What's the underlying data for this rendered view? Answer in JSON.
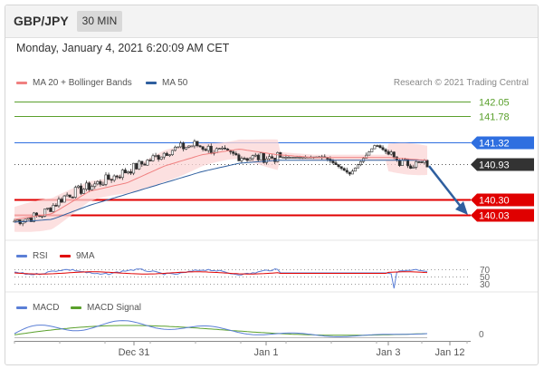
{
  "header": {
    "pair": "GBP/JPY",
    "timeframe": "30 MIN"
  },
  "datetime": "Monday, January 4, 2021 6:20:09 AM CET",
  "legend": {
    "ma20": {
      "label": "MA 20 + Bollinger Bands",
      "color": "#f08080"
    },
    "ma50": {
      "label": "MA 50",
      "color": "#2f5f9f"
    }
  },
  "credit": "Research © 2021 Trading Central",
  "price_levels": [
    {
      "label": "142.05",
      "value": 142.05,
      "color": "#5aa02c",
      "style": "text"
    },
    {
      "label": "141.78",
      "value": 141.78,
      "color": "#5aa02c",
      "style": "text"
    },
    {
      "label": "141.32",
      "value": 141.32,
      "color": "#2f6fe0",
      "style": "badge"
    },
    {
      "label": "140.93",
      "value": 140.93,
      "color": "#333333",
      "style": "badge"
    },
    {
      "label": "140.30",
      "value": 140.3,
      "color": "#e00000",
      "style": "badge"
    },
    {
      "label": "140.03",
      "value": 140.03,
      "color": "#e00000",
      "style": "badge"
    }
  ],
  "rsi": {
    "legend": [
      {
        "label": "RSI",
        "color": "#5b7fd6"
      },
      {
        "label": "9MA",
        "color": "#e00000"
      }
    ],
    "levels": [
      "70",
      "50",
      "30"
    ]
  },
  "macd": {
    "legend": [
      {
        "label": "MACD",
        "color": "#5b7fd6"
      },
      {
        "label": "MACD Signal",
        "color": "#5aa02c"
      }
    ],
    "zero_label": "0"
  },
  "x_axis": {
    "ticks": [
      "Dec 31",
      "Jan 1",
      "Jan 3",
      "Jan 12"
    ]
  },
  "chart_data": {
    "type": "line",
    "title": "GBP/JPY",
    "series": [
      {
        "name": "MA 20 + Bollinger Bands",
        "values": [
          139.95,
          140.05,
          140.45,
          140.6,
          140.9,
          141.1,
          141.2,
          141.1,
          141.05,
          141.05,
          141.05,
          141.0
        ]
      },
      {
        "name": "MA 50",
        "values": [
          139.9,
          139.95,
          140.2,
          140.4,
          140.6,
          140.8,
          140.95,
          141.0,
          141.0,
          141.0,
          141.0,
          141.0
        ]
      }
    ],
    "price_approx": [
      139.92,
      140.02,
      140.38,
      140.55,
      140.74,
      140.95,
      141.18,
      141.28,
      141.14,
      141.05,
      141.05,
      141.05,
      141.06,
      140.75,
      141.28,
      140.95,
      140.93
    ],
    "ylim": [
      139.9,
      142.2
    ],
    "support": [
      140.3,
      140.03
    ],
    "resistance": [
      141.32,
      141.78,
      142.05
    ],
    "last": 140.93
  }
}
